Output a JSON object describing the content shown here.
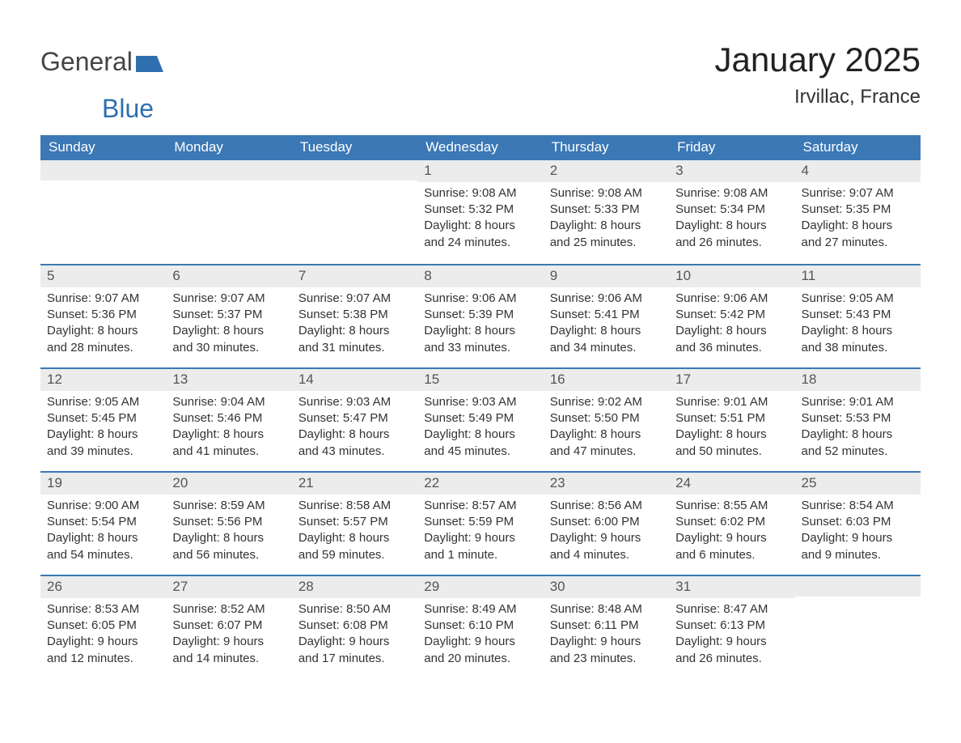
{
  "logo": {
    "text1": "General",
    "text2": "Blue"
  },
  "title": "January 2025",
  "location": "Irvillac, France",
  "colors": {
    "header_bg": "#3b78b5",
    "header_text": "#ffffff",
    "daynum_bg": "#ececec",
    "border": "#3b78b5",
    "body_text": "#333333",
    "logo_blue": "#2f6fb0"
  },
  "dayNames": [
    "Sunday",
    "Monday",
    "Tuesday",
    "Wednesday",
    "Thursday",
    "Friday",
    "Saturday"
  ],
  "weeks": [
    [
      null,
      null,
      null,
      {
        "n": "1",
        "sunrise": "Sunrise: 9:08 AM",
        "sunset": "Sunset: 5:32 PM",
        "daylight": "Daylight: 8 hours and 24 minutes."
      },
      {
        "n": "2",
        "sunrise": "Sunrise: 9:08 AM",
        "sunset": "Sunset: 5:33 PM",
        "daylight": "Daylight: 8 hours and 25 minutes."
      },
      {
        "n": "3",
        "sunrise": "Sunrise: 9:08 AM",
        "sunset": "Sunset: 5:34 PM",
        "daylight": "Daylight: 8 hours and 26 minutes."
      },
      {
        "n": "4",
        "sunrise": "Sunrise: 9:07 AM",
        "sunset": "Sunset: 5:35 PM",
        "daylight": "Daylight: 8 hours and 27 minutes."
      }
    ],
    [
      {
        "n": "5",
        "sunrise": "Sunrise: 9:07 AM",
        "sunset": "Sunset: 5:36 PM",
        "daylight": "Daylight: 8 hours and 28 minutes."
      },
      {
        "n": "6",
        "sunrise": "Sunrise: 9:07 AM",
        "sunset": "Sunset: 5:37 PM",
        "daylight": "Daylight: 8 hours and 30 minutes."
      },
      {
        "n": "7",
        "sunrise": "Sunrise: 9:07 AM",
        "sunset": "Sunset: 5:38 PM",
        "daylight": "Daylight: 8 hours and 31 minutes."
      },
      {
        "n": "8",
        "sunrise": "Sunrise: 9:06 AM",
        "sunset": "Sunset: 5:39 PM",
        "daylight": "Daylight: 8 hours and 33 minutes."
      },
      {
        "n": "9",
        "sunrise": "Sunrise: 9:06 AM",
        "sunset": "Sunset: 5:41 PM",
        "daylight": "Daylight: 8 hours and 34 minutes."
      },
      {
        "n": "10",
        "sunrise": "Sunrise: 9:06 AM",
        "sunset": "Sunset: 5:42 PM",
        "daylight": "Daylight: 8 hours and 36 minutes."
      },
      {
        "n": "11",
        "sunrise": "Sunrise: 9:05 AM",
        "sunset": "Sunset: 5:43 PM",
        "daylight": "Daylight: 8 hours and 38 minutes."
      }
    ],
    [
      {
        "n": "12",
        "sunrise": "Sunrise: 9:05 AM",
        "sunset": "Sunset: 5:45 PM",
        "daylight": "Daylight: 8 hours and 39 minutes."
      },
      {
        "n": "13",
        "sunrise": "Sunrise: 9:04 AM",
        "sunset": "Sunset: 5:46 PM",
        "daylight": "Daylight: 8 hours and 41 minutes."
      },
      {
        "n": "14",
        "sunrise": "Sunrise: 9:03 AM",
        "sunset": "Sunset: 5:47 PM",
        "daylight": "Daylight: 8 hours and 43 minutes."
      },
      {
        "n": "15",
        "sunrise": "Sunrise: 9:03 AM",
        "sunset": "Sunset: 5:49 PM",
        "daylight": "Daylight: 8 hours and 45 minutes."
      },
      {
        "n": "16",
        "sunrise": "Sunrise: 9:02 AM",
        "sunset": "Sunset: 5:50 PM",
        "daylight": "Daylight: 8 hours and 47 minutes."
      },
      {
        "n": "17",
        "sunrise": "Sunrise: 9:01 AM",
        "sunset": "Sunset: 5:51 PM",
        "daylight": "Daylight: 8 hours and 50 minutes."
      },
      {
        "n": "18",
        "sunrise": "Sunrise: 9:01 AM",
        "sunset": "Sunset: 5:53 PM",
        "daylight": "Daylight: 8 hours and 52 minutes."
      }
    ],
    [
      {
        "n": "19",
        "sunrise": "Sunrise: 9:00 AM",
        "sunset": "Sunset: 5:54 PM",
        "daylight": "Daylight: 8 hours and 54 minutes."
      },
      {
        "n": "20",
        "sunrise": "Sunrise: 8:59 AM",
        "sunset": "Sunset: 5:56 PM",
        "daylight": "Daylight: 8 hours and 56 minutes."
      },
      {
        "n": "21",
        "sunrise": "Sunrise: 8:58 AM",
        "sunset": "Sunset: 5:57 PM",
        "daylight": "Daylight: 8 hours and 59 minutes."
      },
      {
        "n": "22",
        "sunrise": "Sunrise: 8:57 AM",
        "sunset": "Sunset: 5:59 PM",
        "daylight": "Daylight: 9 hours and 1 minute."
      },
      {
        "n": "23",
        "sunrise": "Sunrise: 8:56 AM",
        "sunset": "Sunset: 6:00 PM",
        "daylight": "Daylight: 9 hours and 4 minutes."
      },
      {
        "n": "24",
        "sunrise": "Sunrise: 8:55 AM",
        "sunset": "Sunset: 6:02 PM",
        "daylight": "Daylight: 9 hours and 6 minutes."
      },
      {
        "n": "25",
        "sunrise": "Sunrise: 8:54 AM",
        "sunset": "Sunset: 6:03 PM",
        "daylight": "Daylight: 9 hours and 9 minutes."
      }
    ],
    [
      {
        "n": "26",
        "sunrise": "Sunrise: 8:53 AM",
        "sunset": "Sunset: 6:05 PM",
        "daylight": "Daylight: 9 hours and 12 minutes."
      },
      {
        "n": "27",
        "sunrise": "Sunrise: 8:52 AM",
        "sunset": "Sunset: 6:07 PM",
        "daylight": "Daylight: 9 hours and 14 minutes."
      },
      {
        "n": "28",
        "sunrise": "Sunrise: 8:50 AM",
        "sunset": "Sunset: 6:08 PM",
        "daylight": "Daylight: 9 hours and 17 minutes."
      },
      {
        "n": "29",
        "sunrise": "Sunrise: 8:49 AM",
        "sunset": "Sunset: 6:10 PM",
        "daylight": "Daylight: 9 hours and 20 minutes."
      },
      {
        "n": "30",
        "sunrise": "Sunrise: 8:48 AM",
        "sunset": "Sunset: 6:11 PM",
        "daylight": "Daylight: 9 hours and 23 minutes."
      },
      {
        "n": "31",
        "sunrise": "Sunrise: 8:47 AM",
        "sunset": "Sunset: 6:13 PM",
        "daylight": "Daylight: 9 hours and 26 minutes."
      },
      null
    ]
  ]
}
